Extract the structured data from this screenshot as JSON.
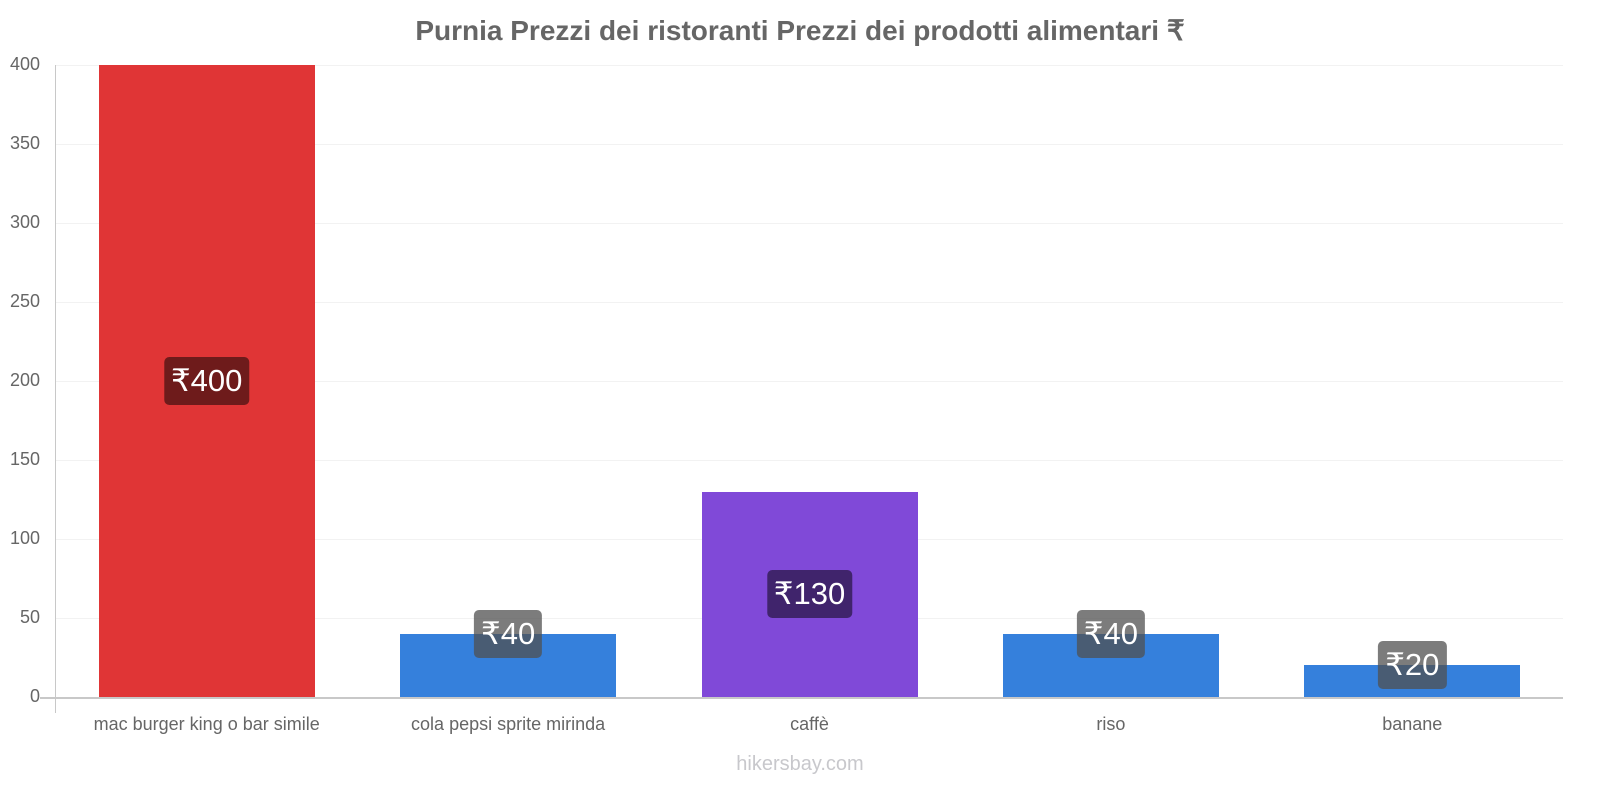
{
  "chart_data": {
    "type": "bar",
    "title": "Purnia Prezzi dei ristoranti Prezzi dei prodotti alimentari ₹",
    "xlabel": "",
    "ylabel": "",
    "ylim": [
      0,
      400
    ],
    "yticks": [
      "0",
      "50",
      "100",
      "150",
      "200",
      "250",
      "300",
      "350",
      "400"
    ],
    "grid": true,
    "legend": null,
    "categories": [
      "mac burger king o bar simile",
      "cola pepsi sprite mirinda",
      "caffè",
      "riso",
      "banane"
    ],
    "values": [
      400,
      40,
      130,
      40,
      20
    ],
    "value_labels": [
      "₹400",
      "₹40",
      "₹130",
      "₹40",
      "₹20"
    ],
    "colors": [
      "#e03536",
      "#3580dc",
      "#8049d8",
      "#3580dc",
      "#3580dc"
    ],
    "label_bg_colors": [
      "#6e1b1b",
      "rgba(80,80,80,0.75)",
      "#40246c",
      "rgba(80,80,80,0.75)",
      "rgba(80,80,80,0.75)"
    ]
  },
  "watermark": "hikersbay.com"
}
